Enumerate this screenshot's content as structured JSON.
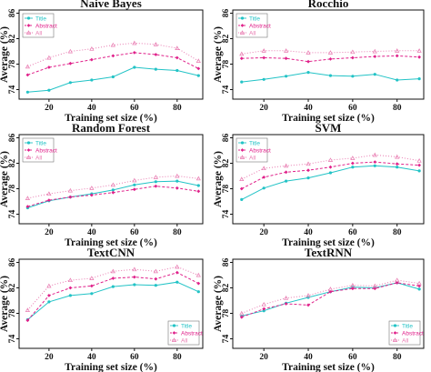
{
  "chart_data": [
    {
      "type": "line",
      "title": "Naive Bayes",
      "xlabel": "Training set size (%)",
      "ylabel": "Average (%)",
      "x": [
        10,
        20,
        30,
        40,
        50,
        60,
        70,
        80,
        90
      ],
      "xticks": [
        20,
        40,
        60,
        80
      ],
      "yticks": [
        74,
        78,
        82,
        86
      ],
      "ylim": [
        72.5,
        86.5
      ],
      "legend": "top-left",
      "series": [
        {
          "name": "Title",
          "color": "#22c3c6",
          "marker": "circle",
          "dash": "solid",
          "values": [
            73.6,
            73.9,
            75.1,
            75.5,
            76.0,
            77.5,
            77.2,
            77.0,
            76.2
          ]
        },
        {
          "name": "Abstract",
          "color": "#e0208a",
          "marker": "diamond",
          "dash": "dashed",
          "values": [
            76.3,
            77.5,
            78.1,
            78.7,
            79.3,
            79.8,
            79.5,
            79.0,
            77.3
          ]
        },
        {
          "name": "All",
          "color": "#e87ab0",
          "marker": "triangle",
          "dash": "dotted",
          "values": [
            77.6,
            79.0,
            80.0,
            80.4,
            81.0,
            81.3,
            81.1,
            80.5,
            78.5
          ]
        }
      ]
    },
    {
      "type": "line",
      "title": "Rocchio",
      "xlabel": "Training set size (%)",
      "ylabel": "Average (%)",
      "x": [
        10,
        20,
        30,
        40,
        50,
        60,
        70,
        80,
        90
      ],
      "xticks": [
        20,
        40,
        60,
        80
      ],
      "yticks": [
        74,
        78,
        82,
        86
      ],
      "ylim": [
        72.5,
        86.5
      ],
      "legend": "top-left",
      "series": [
        {
          "name": "Title",
          "color": "#22c3c6",
          "marker": "circle",
          "dash": "solid",
          "values": [
            75.2,
            75.6,
            76.1,
            76.7,
            76.2,
            76.1,
            76.4,
            75.5,
            75.7
          ]
        },
        {
          "name": "Abstract",
          "color": "#e0208a",
          "marker": "diamond",
          "dash": "dashed",
          "values": [
            78.9,
            79.0,
            78.9,
            78.4,
            78.8,
            79.0,
            79.2,
            79.3,
            79.1
          ]
        },
        {
          "name": "All",
          "color": "#e87ab0",
          "marker": "triangle",
          "dash": "dotted",
          "values": [
            79.6,
            80.1,
            80.1,
            79.8,
            79.8,
            79.9,
            80.0,
            80.1,
            80.1
          ]
        }
      ]
    },
    {
      "type": "line",
      "title": "Random Forest",
      "xlabel": "Training set size (%)",
      "ylabel": "Average (%)",
      "x": [
        10,
        20,
        30,
        40,
        50,
        60,
        70,
        80,
        90
      ],
      "xticks": [
        20,
        40,
        60,
        80
      ],
      "yticks": [
        74,
        78,
        82,
        86
      ],
      "ylim": [
        72.5,
        86.5
      ],
      "legend": "top-left",
      "series": [
        {
          "name": "Title",
          "color": "#22c3c6",
          "marker": "circle",
          "dash": "solid",
          "values": [
            75.0,
            76.1,
            76.7,
            77.2,
            77.8,
            78.6,
            79.1,
            79.2,
            78.5
          ]
        },
        {
          "name": "Abstract",
          "color": "#e0208a",
          "marker": "diamond",
          "dash": "dashed",
          "values": [
            75.2,
            76.2,
            76.7,
            77.0,
            77.4,
            77.9,
            78.4,
            78.1,
            77.6
          ]
        },
        {
          "name": "All",
          "color": "#e87ab0",
          "marker": "triangle",
          "dash": "dotted",
          "values": [
            76.5,
            77.2,
            77.7,
            78.1,
            78.6,
            79.3,
            79.8,
            80.0,
            79.6
          ]
        }
      ]
    },
    {
      "type": "line",
      "title": "SVM",
      "xlabel": "Training set size (%)",
      "ylabel": "Average (%)",
      "x": [
        10,
        20,
        30,
        40,
        50,
        60,
        70,
        80,
        90
      ],
      "xticks": [
        20,
        40,
        60,
        80
      ],
      "yticks": [
        74,
        78,
        82,
        86
      ],
      "ylim": [
        72.5,
        86.5
      ],
      "legend": "top-left",
      "series": [
        {
          "name": "Title",
          "color": "#22c3c6",
          "marker": "circle",
          "dash": "solid",
          "values": [
            76.3,
            78.1,
            79.2,
            79.7,
            80.5,
            81.4,
            81.6,
            81.4,
            80.8
          ]
        },
        {
          "name": "Abstract",
          "color": "#e0208a",
          "marker": "diamond",
          "dash": "dashed",
          "values": [
            78.0,
            79.8,
            80.6,
            80.9,
            81.4,
            82.0,
            82.2,
            81.9,
            81.7
          ]
        },
        {
          "name": "All",
          "color": "#e87ab0",
          "marker": "triangle",
          "dash": "dotted",
          "values": [
            79.5,
            81.2,
            81.6,
            81.9,
            82.5,
            82.8,
            83.3,
            83.0,
            82.4
          ]
        }
      ]
    },
    {
      "type": "line",
      "title": "TextCNN",
      "xlabel": "Training set size (%)",
      "ylabel": "Average (%)",
      "x": [
        10,
        20,
        30,
        40,
        50,
        60,
        70,
        80,
        90
      ],
      "xticks": [
        20,
        40,
        60,
        80
      ],
      "yticks": [
        74,
        78,
        82,
        86
      ],
      "ylim": [
        72.5,
        86.5
      ],
      "legend": "bottom-right",
      "series": [
        {
          "name": "Title",
          "color": "#22c3c6",
          "marker": "circle",
          "dash": "solid",
          "values": [
            77.0,
            79.8,
            80.8,
            81.1,
            82.2,
            82.5,
            82.4,
            82.9,
            81.4
          ]
        },
        {
          "name": "Abstract",
          "color": "#e0208a",
          "marker": "diamond",
          "dash": "dashed",
          "values": [
            76.9,
            80.8,
            82.0,
            82.3,
            83.5,
            83.7,
            83.4,
            84.4,
            82.7
          ]
        },
        {
          "name": "All",
          "color": "#e87ab0",
          "marker": "triangle",
          "dash": "dotted",
          "values": [
            78.5,
            82.3,
            83.2,
            83.5,
            84.6,
            84.9,
            84.6,
            85.3,
            84.0
          ]
        }
      ]
    },
    {
      "type": "line",
      "title": "TextRNN",
      "xlabel": "Training set size (%)",
      "ylabel": "Average (%)",
      "x": [
        10,
        20,
        30,
        40,
        50,
        60,
        70,
        80,
        90
      ],
      "xticks": [
        20,
        40,
        60,
        80
      ],
      "yticks": [
        74,
        78,
        82,
        86
      ],
      "ylim": [
        72.5,
        86.5
      ],
      "legend": "bottom-right",
      "series": [
        {
          "name": "Title",
          "color": "#22c3c6",
          "marker": "circle",
          "dash": "solid",
          "values": [
            77.6,
            78.4,
            79.6,
            80.5,
            81.4,
            82.1,
            82.0,
            82.8,
            81.8
          ]
        },
        {
          "name": "Abstract",
          "color": "#e0208a",
          "marker": "diamond",
          "dash": "dashed",
          "values": [
            77.4,
            78.7,
            79.5,
            79.3,
            81.4,
            81.9,
            81.9,
            82.8,
            82.3
          ]
        },
        {
          "name": "All",
          "color": "#e87ab0",
          "marker": "triangle",
          "dash": "dotted",
          "values": [
            78.0,
            79.4,
            80.4,
            80.8,
            81.8,
            82.4,
            82.3,
            83.2,
            82.7
          ]
        }
      ]
    }
  ]
}
